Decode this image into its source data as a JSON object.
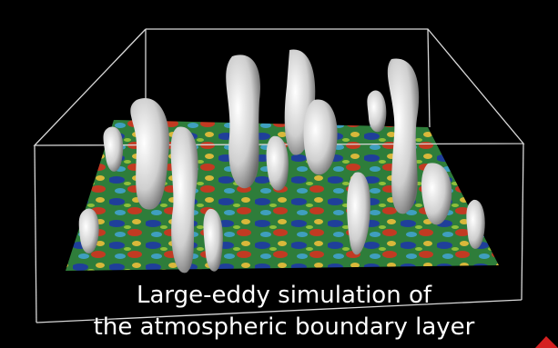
{
  "caption": {
    "lines": [
      "Large-eddy simulation of",
      "the atmospheric boundary layer"
    ]
  }
}
